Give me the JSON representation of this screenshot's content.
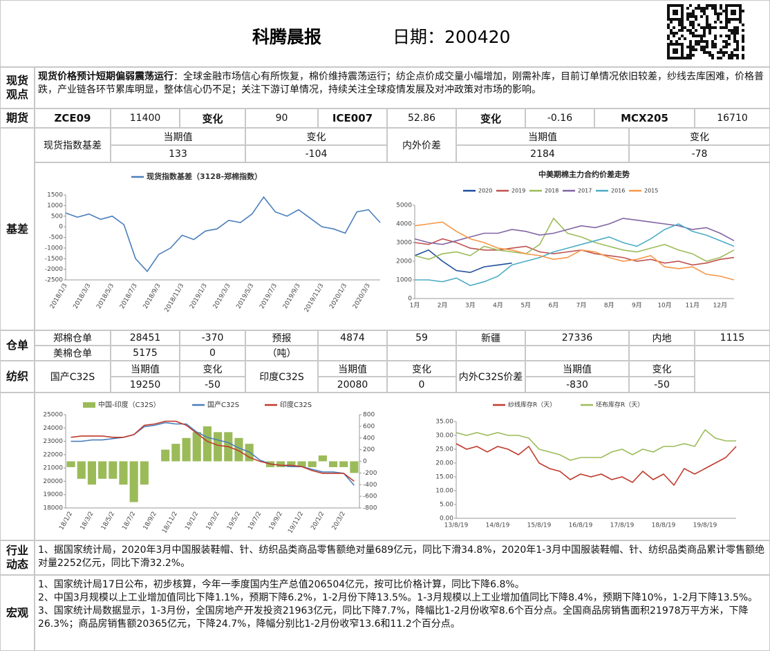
{
  "header": {
    "title": "科腾晨报",
    "date_label": "日期：200420"
  },
  "labels": {
    "spot_view": "现货观点",
    "futures": "期货",
    "basis": "基差",
    "warehouse": "仓单",
    "textile": "纺织",
    "industry": "行业动态",
    "macro": "宏观"
  },
  "spot_view": {
    "lead": "现货价格预计短期偏弱震荡运行",
    "body": "：全球金融市场信心有所恢复，棉价维持震荡运行；纺企点价成交量小幅增加，刚需补库，目前订单情况依旧较差，纱线去库困难，价格普跌，产业链各环节累库明显，整体信心仍不足；关注下游订单情况，持续关注全球疫情发展及对冲政策对市场的影响。"
  },
  "futures": [
    "ZCE09",
    11400,
    "变化",
    90,
    "ICE007",
    52.86,
    "变化",
    -0.16,
    "MCX205",
    16710
  ],
  "basis_table": {
    "label": "现货指数基差",
    "h1": "当期值",
    "v1": 133,
    "h2": "变化",
    "v2": -104,
    "label2": "内外价差",
    "h3": "当期值",
    "v3": 2184,
    "h4": "变化",
    "v4": -78
  },
  "warehouse": [
    [
      "郑棉仓单",
      28451,
      -370,
      "预报",
      4874,
      59,
      "新疆",
      27336,
      "内地",
      1115
    ],
    [
      "美棉仓单",
      5175,
      0,
      "（吨）"
    ]
  ],
  "textile": {
    "label1": "国产C32S",
    "h1": "当期值",
    "v1": 19250,
    "h2": "变化",
    "v2": -50,
    "label2": "印度C32S",
    "h3": "当期值",
    "v3": 20080,
    "h4": "变化",
    "v4": 0,
    "label3": "内外C32S价差",
    "h5": "当期值",
    "v5": -830,
    "h6": "变化",
    "v6": -50
  },
  "industry": "1、据国家统计局，2020年3月中国服装鞋帽、针、纺织品类商品零售额绝对量689亿元，同比下滑34.8%，2020年1-3月中国服装鞋帽、针、纺织品类商品累计零售额绝对量2252亿元，同比下滑32.2%。",
  "macro": [
    "1、国家统计局17日公布，初步核算，今年一季度国内生产总值206504亿元，按可比价格计算，同比下降6.8%。",
    "2、中国3月规模以上工业增加值同比下降1.1%，预期下降6.2%，1-2月份下降13.5%。1-3月规模以上工业增加值同比下降8.4%，预期下降10%，1-2月下降13.5%。",
    "3、国家统计局数据显示，1-3月份，全国房地产开发投资21963亿元，同比下降7.7%，降幅比1-2月份收窄8.6个百分点。全国商品房销售面积21978万平方米，下降26.3%；商品房销售额20365亿元，下降24.7%，降幅分别比1-2月份收窄13.6和11.2个百分点。"
  ],
  "charts": [
    {
      "type": "line",
      "categories": [
        "2018/1/3",
        null,
        "2018/3/3",
        null,
        "2018/5/3",
        null,
        "2018/7/3",
        null,
        "2018/9/3",
        null,
        "2018/11/3",
        null,
        "2019/1/3",
        null,
        "2019/3/3",
        null,
        "2019/5/3",
        null,
        "2019/7/3",
        null,
        "2019/9/3",
        null,
        "2019/11/3",
        null,
        "2020/1/3",
        null,
        "2020/3/3",
        null
      ],
      "series": [
        {
          "name": "现货指数基差（3128-郑棉指数）",
          "color": "#4a7ebb",
          "values": [
            650,
            450,
            600,
            350,
            500,
            100,
            -1500,
            -2100,
            -1300,
            -1000,
            -400,
            -600,
            -200,
            -100,
            300,
            200,
            600,
            1400,
            700,
            500,
            800,
            400,
            0,
            -100,
            -300,
            700,
            800,
            200
          ]
        }
      ],
      "ylim": [
        -2500,
        1500
      ],
      "yticks": [
        -2500,
        -2000,
        -1500,
        -1000,
        -500,
        0,
        500,
        1000,
        1500
      ]
    },
    {
      "type": "line",
      "title": "中美期棉主力合约价差走势",
      "categories": [
        "1月",
        null,
        "2月",
        null,
        "3月",
        null,
        "4月",
        null,
        "5月",
        null,
        "6月",
        null,
        "7月",
        null,
        "8月",
        null,
        "9月",
        null,
        "10月",
        null,
        "11月",
        null,
        "12月",
        null
      ],
      "series": [
        {
          "name": "2020",
          "color": "#1f4e9c",
          "values": [
            2300,
            2600,
            2000,
            1500,
            1400,
            1700,
            1800,
            1900,
            null,
            null,
            null,
            null,
            null,
            null,
            null,
            null,
            null,
            null,
            null,
            null,
            null,
            null,
            null,
            null
          ]
        },
        {
          "name": "2019",
          "color": "#c0504d",
          "values": [
            3000,
            2900,
            3200,
            3000,
            2700,
            2600,
            2600,
            2700,
            2800,
            2500,
            2400,
            2500,
            2600,
            2400,
            2300,
            2200,
            2000,
            2100,
            1900,
            2000,
            1800,
            1900,
            2100,
            2200
          ]
        },
        {
          "name": "2018",
          "color": "#9bbb59",
          "values": [
            2300,
            2100,
            2400,
            2500,
            2300,
            2800,
            2600,
            2500,
            2400,
            2900,
            4300,
            3500,
            3300,
            3000,
            2800,
            2600,
            2500,
            2700,
            2900,
            2600,
            2400,
            2000,
            2200,
            2600
          ]
        },
        {
          "name": "2017",
          "color": "#8064a2",
          "values": [
            3200,
            3000,
            2900,
            3100,
            3300,
            3500,
            3500,
            3700,
            3600,
            3400,
            3500,
            3700,
            3900,
            3800,
            4000,
            4300,
            4200,
            4100,
            4000,
            3900,
            3700,
            3800,
            3500,
            3100
          ]
        },
        {
          "name": "2016",
          "color": "#4bacc6",
          "values": [
            1000,
            1000,
            900,
            1100,
            700,
            900,
            1200,
            1800,
            2000,
            2200,
            2500,
            2700,
            2900,
            3100,
            3300,
            3000,
            2800,
            3200,
            3700,
            4000,
            3600,
            3400,
            3100,
            2800
          ]
        },
        {
          "name": "2015",
          "color": "#f79646",
          "values": [
            3900,
            4000,
            4100,
            3600,
            3200,
            3000,
            2700,
            2600,
            2400,
            2300,
            2100,
            2200,
            2600,
            2500,
            2200,
            2000,
            2100,
            2300,
            1700,
            1600,
            1700,
            1300,
            1200,
            1000
          ]
        }
      ],
      "ylim": [
        0,
        5000
      ],
      "yticks": [
        0,
        1000,
        2000,
        3000,
        4000,
        5000
      ]
    },
    {
      "type": "combo",
      "categories": [
        "18/1/2",
        null,
        "18/3/2",
        null,
        "18/5/2",
        null,
        "18/7/2",
        null,
        "18/9/2",
        null,
        "18/11/2",
        null,
        "19/1/2",
        null,
        "19/3/2",
        null,
        "19/5/2",
        null,
        "19/7/2",
        null,
        "19/9/2",
        null,
        "19/11/2",
        null,
        "20/1/2",
        null,
        "20/3/2",
        null
      ],
      "series": [
        {
          "name": "中国-印度（C32S）",
          "type": "bar",
          "axis": "y2",
          "color": "#9bbb59",
          "values": [
            -100,
            -300,
            -400,
            -300,
            -300,
            -400,
            -700,
            -400,
            0,
            200,
            300,
            400,
            500,
            600,
            500,
            500,
            400,
            300,
            0,
            -100,
            -100,
            -100,
            -100,
            -100,
            100,
            -100,
            -100,
            -200
          ]
        },
        {
          "name": "国产C32S",
          "type": "line",
          "color": "#4a7ebb",
          "values": [
            23000,
            23000,
            23100,
            23100,
            23200,
            23300,
            23500,
            24100,
            24200,
            24400,
            24300,
            24300,
            23700,
            23300,
            23100,
            22900,
            22500,
            22200,
            21600,
            21300,
            21200,
            21100,
            21100,
            20900,
            20700,
            20700,
            20600,
            19700
          ]
        },
        {
          "name": "印度C32S",
          "type": "line",
          "color": "#c0392b",
          "values": [
            23300,
            23400,
            23400,
            23400,
            23300,
            23300,
            23500,
            24200,
            24300,
            24500,
            24500,
            24200,
            23600,
            23000,
            22700,
            22600,
            22300,
            21800,
            21500,
            21300,
            21200,
            21200,
            21100,
            20800,
            20600,
            20600,
            20600,
            20000
          ]
        }
      ],
      "ylim": [
        18000,
        25000
      ],
      "yticks": [
        18000,
        19000,
        20000,
        21000,
        22000,
        23000,
        24000,
        25000
      ],
      "y2lim": [
        -800,
        800
      ],
      "y2ticks": [
        -800,
        -600,
        -400,
        -200,
        0,
        200,
        400,
        600,
        800
      ]
    },
    {
      "type": "line",
      "categories": [
        "13/8/19",
        null,
        null,
        null,
        "14/8/19",
        null,
        null,
        null,
        "15/8/19",
        null,
        null,
        null,
        "16/8/19",
        null,
        null,
        null,
        "17/8/19",
        null,
        null,
        null,
        "18/8/19",
        null,
        null,
        null,
        "19/8/19",
        null,
        null,
        null
      ],
      "series": [
        {
          "name": "纱线库存R（天）",
          "color": "#c0392b",
          "values": [
            27,
            25,
            26,
            24,
            26,
            25,
            23,
            26,
            20,
            18,
            17,
            14,
            16,
            15,
            16,
            14,
            15,
            13,
            17,
            14,
            16,
            12,
            18,
            16,
            18,
            20,
            22,
            26
          ]
        },
        {
          "name": "坯布库存R（天）",
          "color": "#9bbb59",
          "values": [
            31,
            30,
            31,
            30,
            31,
            30,
            30,
            29,
            25,
            24,
            23,
            21,
            22,
            22,
            22,
            24,
            25,
            23,
            25,
            24,
            26,
            26,
            27,
            26,
            32,
            29,
            28,
            28
          ]
        }
      ],
      "ylim": [
        0,
        35
      ],
      "yticks": [
        {
          "value": 0,
          "label": "0.00"
        },
        {
          "value": 5,
          "label": "5.00"
        },
        {
          "value": 10,
          "label": "10.00"
        },
        {
          "value": 15,
          "label": "15.00"
        },
        {
          "value": 20,
          "label": "20.00"
        },
        {
          "value": 25,
          "label": "25.00"
        },
        {
          "value": 30,
          "label": "30.00"
        },
        {
          "value": 35,
          "label": "35.00"
        }
      ]
    }
  ]
}
